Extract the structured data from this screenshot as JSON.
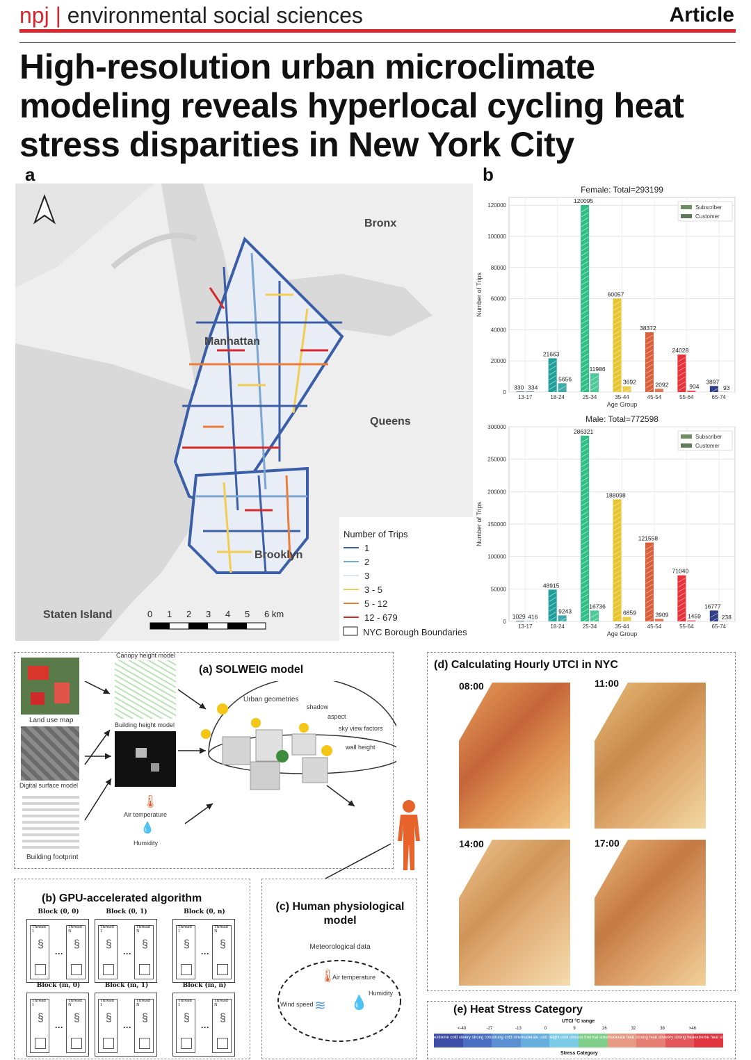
{
  "header": {
    "journal_prefix": "npj",
    "journal_separator": "|",
    "journal_name": "environmental social sciences",
    "article_type": "Article"
  },
  "title": "High-resolution urban microclimate modeling reveals hyperlocal cycling heat stress disparities in New York City",
  "panel_a": {
    "letter": "a",
    "labels": {
      "bronx": "Bronx",
      "manhattan": "Manhattan",
      "queens": "Queens",
      "brooklyn": "Brooklyn",
      "staten_island": "Staten Island"
    },
    "scale": {
      "ticks": [
        "0",
        "1",
        "2",
        "3",
        "4",
        "5",
        "6 km"
      ]
    },
    "legend": {
      "title": "Number of Trips",
      "items": [
        {
          "label": "1",
          "color": "#3b5ea8"
        },
        {
          "label": "2",
          "color": "#7aa6d1"
        },
        {
          "label": "3",
          "color": "#d8e6ee"
        },
        {
          "label": "3 - 5",
          "color": "#f3cc52"
        },
        {
          "label": "5 - 12",
          "color": "#ec7c3a"
        },
        {
          "label": "12 - 679",
          "color": "#d42a2a"
        }
      ],
      "boundary_label": "NYC Borough Boundaries"
    }
  },
  "panel_b": {
    "letter": "b",
    "chart_data": [
      {
        "type": "bar",
        "title": "Female: Total=293199",
        "xlabel": "Age Group",
        "ylabel": "Number of Trips",
        "categories": [
          "13-17",
          "18-24",
          "25-34",
          "35-44",
          "45-54",
          "55-64",
          "65-74"
        ],
        "ylim": [
          0,
          125000
        ],
        "yticks": [
          0,
          20000,
          40000,
          60000,
          80000,
          100000,
          120000
        ],
        "series": [
          {
            "name": "Subscriber",
            "values": [
              330,
              21663,
              120095,
              60057,
              38372,
              24028,
              3897
            ]
          },
          {
            "name": "Customer",
            "values": [
              334,
              5656,
              11986,
              3692,
              2092,
              904,
              93
            ]
          }
        ],
        "colors": [
          "#3b5b9e",
          "#1f9e9a",
          "#2fbf87",
          "#e6c52e",
          "#d9603b",
          "#e8323a",
          "#2f3f8a"
        ],
        "legend_position": "top-right"
      },
      {
        "type": "bar",
        "title": "Male: Total=772598",
        "xlabel": "Age Group",
        "ylabel": "Number of Trips",
        "categories": [
          "13-17",
          "18-24",
          "25-34",
          "35-44",
          "45-54",
          "55-64",
          "65-74"
        ],
        "ylim": [
          0,
          300000
        ],
        "yticks": [
          0,
          50000,
          100000,
          150000,
          200000,
          250000,
          300000
        ],
        "series": [
          {
            "name": "Subscriber",
            "values": [
              1029,
              48915,
              286321,
              188098,
              121558,
              71040,
              16777
            ]
          },
          {
            "name": "Customer",
            "values": [
              416,
              9243,
              16736,
              6859,
              3909,
              1459,
              238
            ]
          }
        ],
        "legend_position": "top-right"
      }
    ]
  },
  "panel_solweig": {
    "title": "(a) SOLWEIG model",
    "inputs": {
      "land_use": "Land use map",
      "dsm": "Digital surface model",
      "footprint": "Building footprint",
      "canopy": "Canopy height model",
      "building_height": "Building height model",
      "air_temperature": "Air temperature",
      "humidity": "Humidity"
    },
    "dome_labels": {
      "urban_geometries": "Urban geometries",
      "shadow": "shadow",
      "aspect": "aspect",
      "svf": "sky view factors",
      "wall_height": "wall height"
    }
  },
  "panel_gpu": {
    "title": "(b) GPU-accelerated algorithm",
    "blocks": [
      "Block (0, 0)",
      "Block (0, 1)",
      "Block (0, n)",
      "Block (m, 0)",
      "Block (m, 1)",
      "Block (m, n)"
    ],
    "thread_labels": [
      "Thread 1",
      "Thread N"
    ]
  },
  "panel_physio": {
    "title": "(c) Human physiological model",
    "subtitle": "Meteorological data",
    "labels": {
      "air_temperature": "Air temperature",
      "humidity": "Humidity",
      "wind_speed": "Wind speed"
    }
  },
  "panel_utci": {
    "title": "(d) Calculating Hourly UTCI in NYC",
    "times": [
      "08:00",
      "11:00",
      "14:00",
      "17:00"
    ]
  },
  "panel_heat": {
    "title": "(e) Heat Stress Category",
    "range_label": "UTCI °C range",
    "thresholds": [
      "<-40",
      "-27",
      "-13",
      "0",
      "9",
      "26",
      "32",
      "38",
      ">46"
    ],
    "categories": [
      {
        "label": "extreme cold stress",
        "color": "#3f4ea5"
      },
      {
        "label": "very strong cold stress",
        "color": "#4a6fc0"
      },
      {
        "label": "strong cold stress",
        "color": "#5a8fd2"
      },
      {
        "label": "moderate cold stress",
        "color": "#66aede"
      },
      {
        "label": "slight cold stress",
        "color": "#7ccbe6"
      },
      {
        "label": "no thermal stress",
        "color": "#7fcf8a"
      },
      {
        "label": "moderate heat stress",
        "color": "#e79a83"
      },
      {
        "label": "strong heat stress",
        "color": "#e57f73"
      },
      {
        "label": "very strong heat stress",
        "color": "#e2585b"
      },
      {
        "label": "extreme heat stress",
        "color": "#e0353f"
      }
    ],
    "axis_label": "Stress Category"
  }
}
